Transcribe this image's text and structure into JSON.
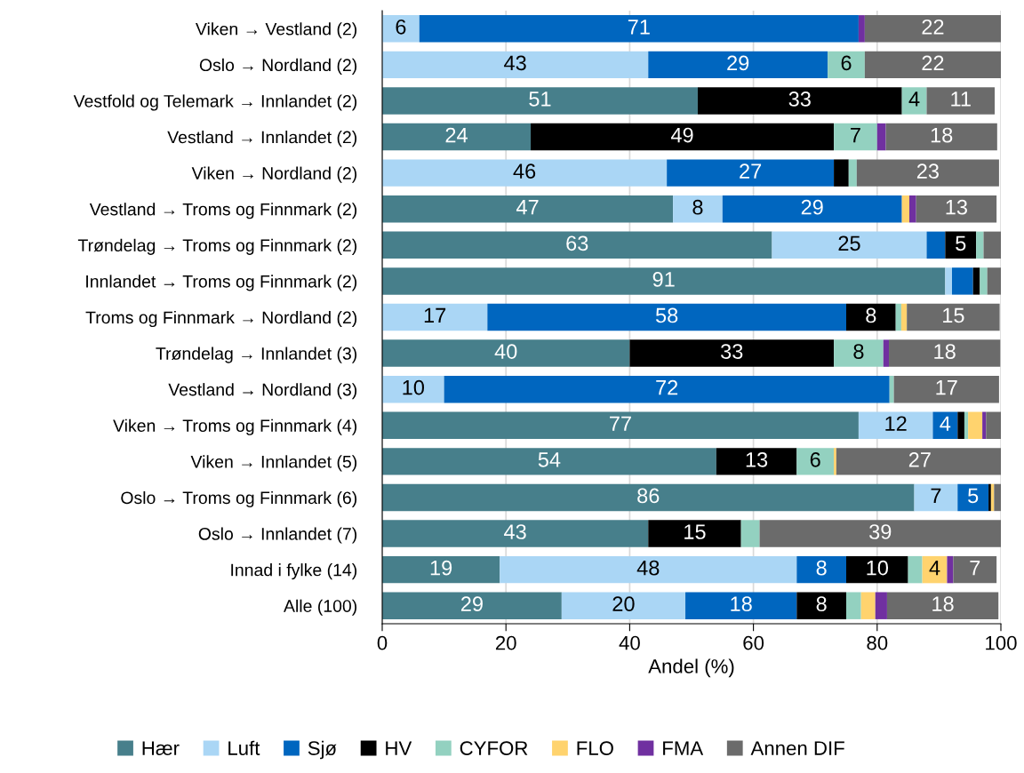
{
  "chart_data": {
    "type": "bar",
    "orientation": "horizontal",
    "stacked": true,
    "xlabel": "Andel (%)",
    "xlim": [
      0,
      100
    ],
    "xticks": [
      0,
      20,
      40,
      60,
      80,
      100
    ],
    "grid": "x",
    "legend": "bottom",
    "categories": [
      "Viken → Vestland (2)",
      "Oslo → Nordland (2)",
      "Vestfold og Telemark → Innlandet (2)",
      "Vestland → Innlandet (2)",
      "Viken → Nordland (2)",
      "Vestland → Troms og Finnmark (2)",
      "Trøndelag → Troms og Finnmark (2)",
      "Innlandet → Troms og Finnmark (2)",
      "Troms og Finnmark → Nordland (2)",
      "Trøndelag → Innlandet (3)",
      "Vestland → Nordland (3)",
      "Viken → Troms og Finnmark (4)",
      "Viken → Innlandet (5)",
      "Oslo → Troms og Finnmark (6)",
      "Oslo → Innlandet (7)",
      "Innad i fylke (14)",
      "Alle (100)"
    ],
    "series": [
      {
        "name": "Hær",
        "color": "#477f8b",
        "values": [
          null,
          null,
          51,
          24,
          null,
          47,
          63,
          91,
          null,
          40,
          null,
          77,
          54,
          86,
          43,
          19,
          29
        ],
        "value_labels": [
          null,
          null,
          "51",
          "24",
          null,
          "47",
          "63",
          "91",
          null,
          "40",
          null,
          "77",
          "54",
          "86",
          "43",
          "19",
          "29"
        ]
      },
      {
        "name": "Luft",
        "color": "#aad6f5",
        "values": [
          6,
          43,
          null,
          null,
          46,
          8,
          25,
          1.1,
          17,
          null,
          10,
          12,
          null,
          7,
          null,
          48,
          20
        ],
        "value_labels": [
          "6",
          "43",
          null,
          null,
          "46",
          "8",
          "25",
          null,
          "17",
          null,
          "10",
          "12",
          null,
          "7",
          null,
          "48",
          "20"
        ]
      },
      {
        "name": "Sjø",
        "color": "#0066bf",
        "values": [
          71,
          29,
          null,
          null,
          27,
          29,
          3.0,
          3.4,
          58,
          null,
          72,
          4,
          null,
          5,
          null,
          8,
          18
        ],
        "value_labels": [
          "71",
          "29",
          null,
          null,
          "27",
          "29",
          null,
          null,
          "58",
          null,
          "72",
          "4",
          null,
          "5",
          null,
          "8",
          "18"
        ]
      },
      {
        "name": "HV",
        "color": "#000000",
        "values": [
          null,
          null,
          33,
          49,
          2.4,
          null,
          5,
          1.1,
          8,
          33,
          null,
          1.1,
          13,
          0.4,
          15,
          10,
          8
        ],
        "value_labels": [
          null,
          null,
          "33",
          "49",
          null,
          null,
          "5",
          null,
          "8",
          "33",
          null,
          null,
          "13",
          null,
          "15",
          "10",
          "8"
        ]
      },
      {
        "name": "CYFOR",
        "color": "#93d1c0",
        "values": [
          null,
          6,
          4,
          7,
          1.3,
          null,
          1.2,
          1.2,
          0.9,
          8,
          0.7,
          0.6,
          6,
          null,
          3.0,
          2.3,
          2.4
        ],
        "value_labels": [
          null,
          "6",
          "4",
          "7",
          null,
          null,
          null,
          null,
          null,
          "8",
          null,
          null,
          "6",
          null,
          null,
          null,
          null
        ]
      },
      {
        "name": "FLO",
        "color": "#ffd36e",
        "values": [
          null,
          null,
          null,
          null,
          null,
          1.2,
          null,
          null,
          0.9,
          null,
          null,
          2.3,
          0.4,
          0.5,
          null,
          4,
          2.3
        ],
        "value_labels": [
          null,
          null,
          null,
          null,
          null,
          null,
          null,
          null,
          null,
          null,
          null,
          null,
          null,
          null,
          null,
          "4",
          null
        ]
      },
      {
        "name": "FMA",
        "color": "#7030a0",
        "values": [
          1.0,
          null,
          null,
          1.4,
          null,
          1.1,
          null,
          null,
          null,
          0.9,
          null,
          0.6,
          null,
          null,
          null,
          1.0,
          1.9
        ],
        "value_labels": [
          null,
          null,
          null,
          null,
          null,
          null,
          null,
          null,
          null,
          null,
          null,
          null,
          null,
          null,
          null,
          null,
          null
        ]
      },
      {
        "name": "Annen DIF",
        "color": "#6b6b6b",
        "values": [
          22,
          22,
          11,
          18,
          23,
          13,
          2.8,
          2.2,
          15,
          18,
          17,
          2.4,
          27,
          1.1,
          39,
          7,
          18
        ],
        "value_labels": [
          "22",
          "22",
          "11",
          "18",
          "23",
          "13",
          null,
          null,
          "15",
          "18",
          "17",
          null,
          "27",
          null,
          "39",
          "7",
          "18"
        ]
      }
    ]
  }
}
